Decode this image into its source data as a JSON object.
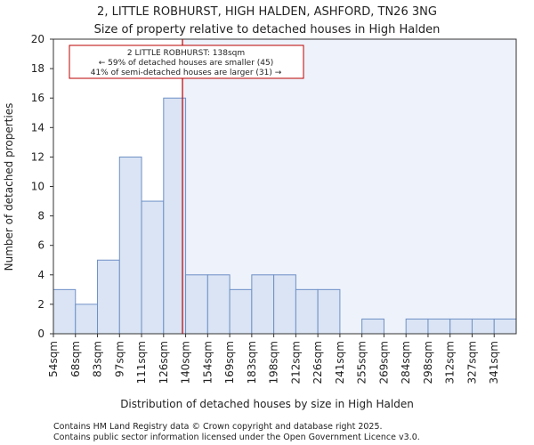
{
  "chart_data": {
    "type": "bar",
    "title": "2, LITTLE ROBHURST, HIGH HALDEN, ASHFORD, TN26 3NG",
    "subtitle": "Size of property relative to detached houses in High Halden",
    "xlabel": "Distribution of detached houses by size in High Halden",
    "ylabel": "Number of detached properties",
    "categories": [
      "54sqm",
      "68sqm",
      "83sqm",
      "97sqm",
      "111sqm",
      "126sqm",
      "140sqm",
      "154sqm",
      "169sqm",
      "183sqm",
      "198sqm",
      "212sqm",
      "226sqm",
      "241sqm",
      "255sqm",
      "269sqm",
      "284sqm",
      "298sqm",
      "312sqm",
      "327sqm",
      "341sqm"
    ],
    "values": [
      3,
      2,
      5,
      12,
      9,
      16,
      4,
      4,
      3,
      4,
      4,
      3,
      3,
      0,
      1,
      0,
      1,
      1,
      1,
      1,
      1
    ],
    "y_ticks": [
      0,
      2,
      4,
      6,
      8,
      10,
      12,
      14,
      16,
      18,
      20
    ],
    "ylim": [
      0,
      20
    ],
    "bar_color": "#dae4f4",
    "bar_edge_color": "#6e90c6",
    "marker": {
      "value_sqm": 138,
      "color": "#bb0000",
      "annotation_lines": [
        "2 LITTLE ROBHURST: 138sqm",
        "← 59% of detached houses are smaller (45)",
        "41% of semi-detached houses are larger (31) →"
      ]
    },
    "footer": [
      "Contains HM Land Registry data © Crown copyright and database right 2025.",
      "Contains public sector information licensed under the Open Government Licence v3.0."
    ]
  }
}
